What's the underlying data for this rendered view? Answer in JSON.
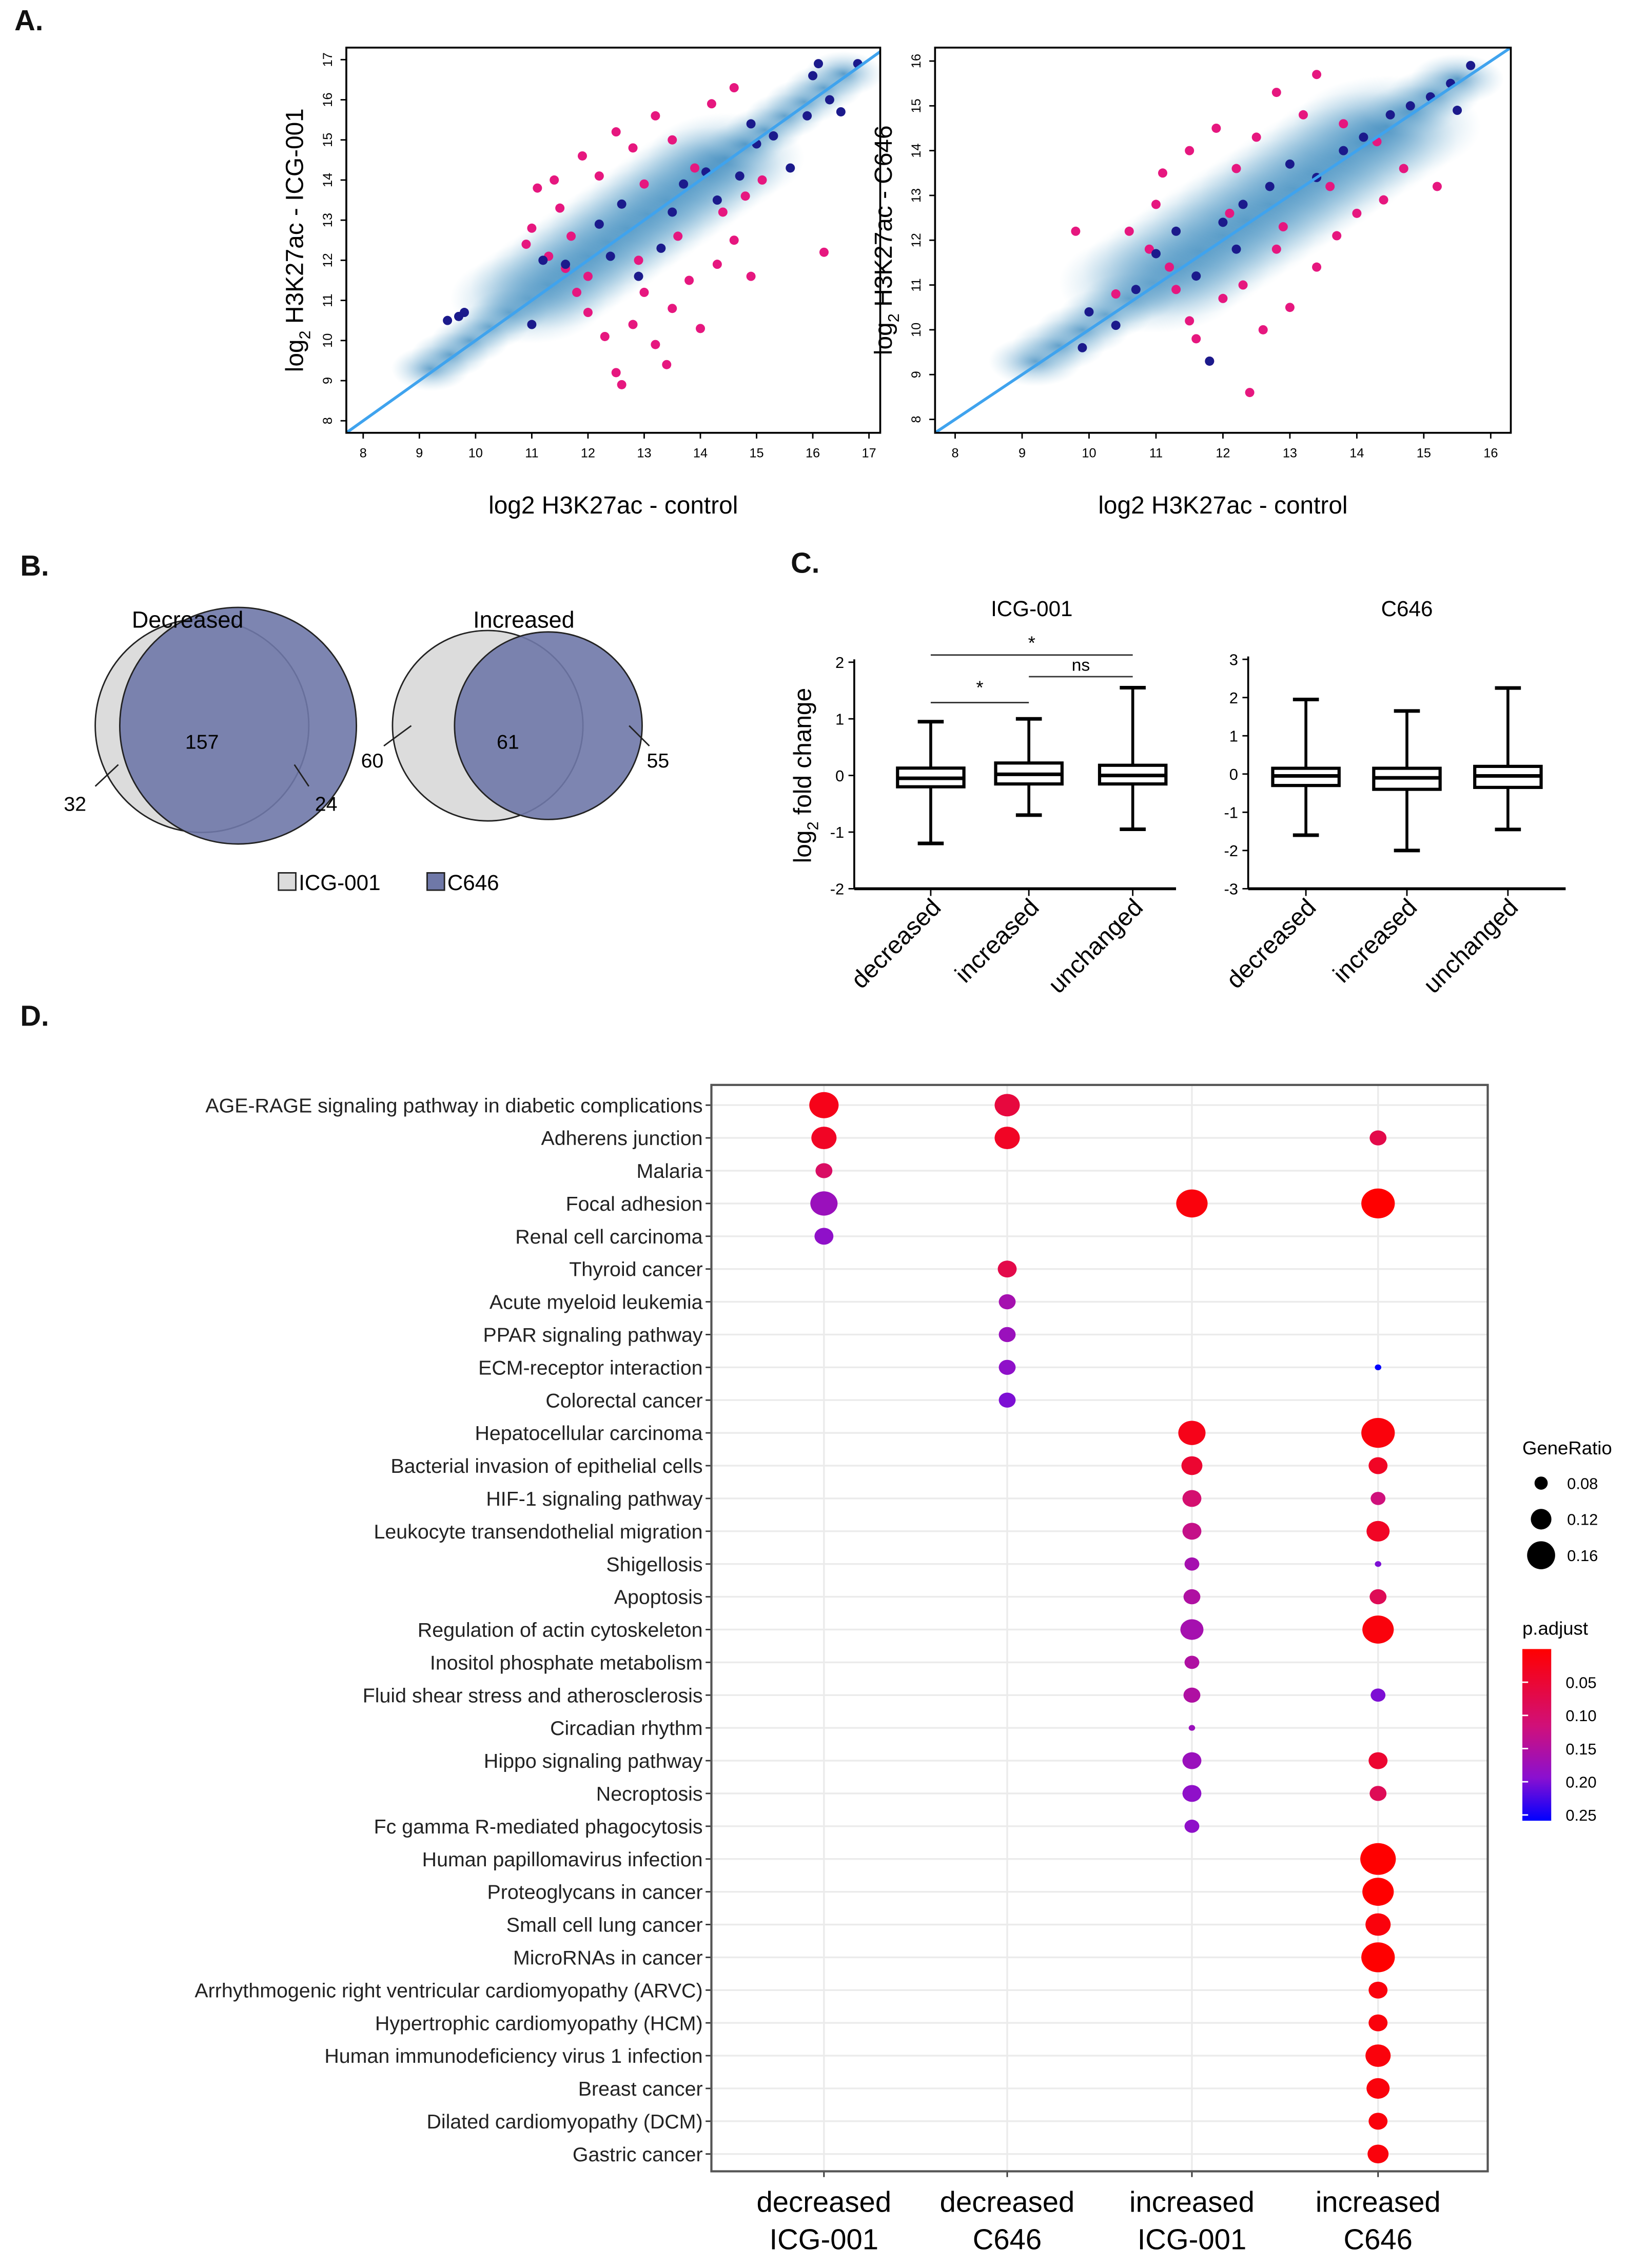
{
  "panel_labels": {
    "a": "A.",
    "b": "B.",
    "c": "C.",
    "d": "D."
  },
  "chart_data": [
    {
      "id": "A-left",
      "type": "scatter",
      "xlabel": "log2 H3K27ac - control",
      "ylabel_main": "log",
      "ylabel_sub": "2",
      "ylabel_rest": " H3K27ac - ICG-001",
      "xlim": [
        7.7,
        17.2
      ],
      "ylim": [
        7.7,
        17.3
      ],
      "xticks": [
        "8",
        "9",
        "10",
        "11",
        "12",
        "13",
        "14",
        "15",
        "16",
        "17"
      ],
      "yticks": [
        "8",
        "9",
        "10",
        "11",
        "12",
        "13",
        "14",
        "15",
        "16",
        "17"
      ],
      "diagonal": "y = x",
      "colors": {
        "changed": "#e6177f",
        "highlight": "#1b1a8c",
        "density": "#2c7fb8",
        "diagonal": "#3fa3ee"
      },
      "series": [
        {
          "role": "changed",
          "points": [
            [
              11,
              12.8
            ],
            [
              11.3,
              12.1
            ],
            [
              11.5,
              13.3
            ],
            [
              11.8,
              11.2
            ],
            [
              12,
              10.7
            ],
            [
              12.3,
              10.1
            ],
            [
              12.5,
              9.2
            ],
            [
              12.6,
              8.9
            ],
            [
              12.8,
              10.4
            ],
            [
              13,
              11.2
            ],
            [
              13.2,
              9.9
            ],
            [
              13.5,
              10.8
            ],
            [
              13.8,
              11.5
            ],
            [
              14,
              10.3
            ],
            [
              14.3,
              11.9
            ],
            [
              14.6,
              12.5
            ],
            [
              14.9,
              11.6
            ],
            [
              16.2,
              12.2
            ],
            [
              11.4,
              14.0
            ],
            [
              11.9,
              14.6
            ],
            [
              12.5,
              15.2
            ],
            [
              12.8,
              14.8
            ],
            [
              13.2,
              15.6
            ],
            [
              13.5,
              15.0
            ],
            [
              13.9,
              14.3
            ],
            [
              14.2,
              15.9
            ],
            [
              14.6,
              16.3
            ],
            [
              12.2,
              14.1
            ],
            [
              11.1,
              13.8
            ],
            [
              11.6,
              11.8
            ],
            [
              12.9,
              12.0
            ],
            [
              13.6,
              12.6
            ],
            [
              14.4,
              13.2
            ],
            [
              15.1,
              14.0
            ],
            [
              13.0,
              13.9
            ],
            [
              12.0,
              11.6
            ],
            [
              11.7,
              12.6
            ],
            [
              14.8,
              13.6
            ],
            [
              10.9,
              12.4
            ],
            [
              13.4,
              9.4
            ]
          ]
        },
        {
          "role": "highlight",
          "points": [
            [
              9.5,
              10.5
            ],
            [
              9.8,
              10.7
            ],
            [
              9.7,
              10.6
            ],
            [
              11,
              10.4
            ],
            [
              11.2,
              12.0
            ],
            [
              11.6,
              11.9
            ],
            [
              12.2,
              12.9
            ],
            [
              12.6,
              13.4
            ],
            [
              12.9,
              11.6
            ],
            [
              13.3,
              12.3
            ],
            [
              13.7,
              13.9
            ],
            [
              14.1,
              14.2
            ],
            [
              14.3,
              13.5
            ],
            [
              14.7,
              14.1
            ],
            [
              15.0,
              14.9
            ],
            [
              15.3,
              15.1
            ],
            [
              15.6,
              14.3
            ],
            [
              15.9,
              15.6
            ],
            [
              16.1,
              16.9
            ],
            [
              16.3,
              16.0
            ],
            [
              16.5,
              15.7
            ],
            [
              16.8,
              16.9
            ],
            [
              16.0,
              16.6
            ],
            [
              13.5,
              13.2
            ],
            [
              12.4,
              12.1
            ],
            [
              14.9,
              15.4
            ]
          ]
        }
      ]
    },
    {
      "id": "A-right",
      "type": "scatter",
      "xlabel": "log2 H3K27ac - control",
      "ylabel_main": "log",
      "ylabel_sub": "2",
      "ylabel_rest": " H3K27ac - C646",
      "xlim": [
        7.7,
        16.3
      ],
      "ylim": [
        7.7,
        16.3
      ],
      "xticks": [
        "8",
        "9",
        "10",
        "11",
        "12",
        "13",
        "14",
        "15",
        "16"
      ],
      "yticks": [
        "8",
        "9",
        "10",
        "11",
        "12",
        "13",
        "14",
        "15",
        "16"
      ],
      "diagonal": "y = x",
      "colors": {
        "changed": "#e6177f",
        "highlight": "#1b1a8c",
        "density": "#2c7fb8",
        "diagonal": "#3fa3ee"
      },
      "series": [
        {
          "role": "changed",
          "points": [
            [
              10.6,
              12.2
            ],
            [
              10.9,
              11.8
            ],
            [
              11.1,
              13.5
            ],
            [
              11.3,
              10.9
            ],
            [
              11.5,
              10.2
            ],
            [
              11.6,
              9.8
            ],
            [
              11.8,
              9.3
            ],
            [
              12.0,
              10.7
            ],
            [
              12.3,
              11.0
            ],
            [
              12.4,
              8.6
            ],
            [
              12.6,
              10.0
            ],
            [
              12.8,
              11.8
            ],
            [
              13.0,
              10.5
            ],
            [
              13.4,
              11.4
            ],
            [
              13.7,
              12.1
            ],
            [
              14.0,
              12.6
            ],
            [
              14.4,
              12.9
            ],
            [
              15.2,
              13.2
            ],
            [
              11.0,
              12.8
            ],
            [
              11.5,
              14.0
            ],
            [
              11.9,
              14.5
            ],
            [
              12.2,
              13.6
            ],
            [
              12.5,
              14.3
            ],
            [
              12.8,
              15.3
            ],
            [
              13.2,
              14.8
            ],
            [
              13.4,
              15.7
            ],
            [
              13.8,
              14.6
            ],
            [
              14.3,
              14.2
            ],
            [
              9.8,
              12.2
            ],
            [
              10.4,
              10.8
            ],
            [
              12.9,
              12.3
            ],
            [
              11.2,
              11.4
            ],
            [
              13.6,
              13.2
            ],
            [
              14.7,
              13.6
            ],
            [
              12.1,
              12.6
            ]
          ]
        },
        {
          "role": "highlight",
          "points": [
            [
              9.9,
              9.6
            ],
            [
              10.0,
              10.4
            ],
            [
              10.4,
              10.1
            ],
            [
              10.7,
              10.9
            ],
            [
              11.0,
              11.7
            ],
            [
              11.3,
              12.2
            ],
            [
              11.8,
              9.3
            ],
            [
              12.0,
              12.4
            ],
            [
              12.3,
              12.8
            ],
            [
              12.7,
              13.2
            ],
            [
              13.0,
              13.7
            ],
            [
              13.4,
              13.4
            ],
            [
              13.8,
              14.0
            ],
            [
              14.1,
              14.3
            ],
            [
              14.5,
              14.8
            ],
            [
              14.8,
              15.0
            ],
            [
              15.1,
              15.2
            ],
            [
              15.4,
              15.5
            ],
            [
              15.7,
              15.9
            ],
            [
              15.5,
              14.9
            ],
            [
              12.2,
              11.8
            ],
            [
              11.6,
              11.2
            ]
          ]
        }
      ]
    },
    {
      "id": "C-left",
      "type": "box",
      "title": "ICG-001",
      "ylabel_main": "log",
      "ylabel_sub": "2",
      "ylabel_rest": " fold change",
      "ylim": [
        -2,
        2
      ],
      "yticks": [
        "2",
        "1",
        "0",
        "-1",
        "-2"
      ],
      "categories": [
        "decreased",
        "increased",
        "unchanged"
      ],
      "boxes": [
        {
          "min": -1.2,
          "q1": -0.2,
          "median": -0.05,
          "q3": 0.13,
          "max": 0.95
        },
        {
          "min": -0.7,
          "q1": -0.15,
          "median": 0.02,
          "q3": 0.22,
          "max": 1.0
        },
        {
          "min": -0.95,
          "q1": -0.15,
          "median": 0.0,
          "q3": 0.18,
          "max": 1.55
        }
      ],
      "significance": [
        {
          "from": 0,
          "to": 2,
          "label": "*"
        },
        {
          "from": 0,
          "to": 1,
          "label": "*"
        },
        {
          "from": 1,
          "to": 2,
          "label": "ns"
        }
      ]
    },
    {
      "id": "C-right",
      "type": "box",
      "title": "C646",
      "ylim": [
        -3,
        3
      ],
      "yticks": [
        "3",
        "2",
        "1",
        "0",
        "-1",
        "-2",
        "-3"
      ],
      "categories": [
        "decreased",
        "increased",
        "unchanged"
      ],
      "boxes": [
        {
          "min": -1.6,
          "q1": -0.3,
          "median": -0.05,
          "q3": 0.15,
          "max": 1.95
        },
        {
          "min": -2.0,
          "q1": -0.4,
          "median": -0.1,
          "q3": 0.15,
          "max": 1.65
        },
        {
          "min": -1.45,
          "q1": -0.35,
          "median": -0.05,
          "q3": 0.2,
          "max": 2.25
        }
      ]
    },
    {
      "id": "D",
      "type": "dot",
      "columns": [
        [
          "decreased",
          "ICG-001"
        ],
        [
          "decreased",
          "C646"
        ],
        [
          "increased",
          "ICG-001"
        ],
        [
          "increased",
          "C646"
        ]
      ],
      "rows": [
        "AGE-RAGE signaling pathway in diabetic complications",
        "Adherens junction",
        "Malaria",
        "Focal adhesion",
        "Renal cell carcinoma",
        "Thyroid cancer",
        "Acute myeloid leukemia",
        "PPAR signaling pathway",
        "ECM-receptor interaction",
        "Colorectal cancer",
        "Hepatocellular carcinoma",
        "Bacterial invasion of epithelial cells",
        "HIF-1 signaling pathway",
        "Leukocyte transendothelial migration",
        "Shigellosis",
        "Apoptosis",
        "Regulation of actin cytoskeleton",
        "Inositol phosphate metabolism",
        "Fluid shear stress and atherosclerosis",
        "Circadian rhythm",
        "Hippo signaling pathway",
        "Necroptosis",
        "Fc gamma R-mediated phagocytosis",
        "Human papillomavirus infection",
        "Proteoglycans in cancer",
        "Small cell lung cancer",
        "MicroRNAs in cancer",
        "Arrhythmogenic right ventricular cardiomyopathy (ARVC)",
        "Hypertrophic cardiomyopathy (HCM)",
        "Human immunodeficiency virus 1 infection",
        "Breast cancer",
        "Dilated cardiomyopathy (DCM)",
        "Gastric cancer"
      ],
      "points_fields": [
        "row",
        "column",
        "GeneRatio",
        "p.adjust"
      ],
      "points": [
        [
          0,
          0,
          0.15,
          0.05
        ],
        [
          0,
          1,
          0.13,
          0.08
        ],
        [
          1,
          0,
          0.13,
          0.06
        ],
        [
          1,
          1,
          0.13,
          0.06
        ],
        [
          1,
          3,
          0.09,
          0.09
        ],
        [
          2,
          0,
          0.09,
          0.11
        ],
        [
          3,
          0,
          0.14,
          0.18
        ],
        [
          3,
          2,
          0.16,
          0.04
        ],
        [
          3,
          3,
          0.17,
          0.03
        ],
        [
          4,
          0,
          0.1,
          0.19
        ],
        [
          5,
          1,
          0.1,
          0.09
        ],
        [
          6,
          1,
          0.09,
          0.17
        ],
        [
          7,
          1,
          0.09,
          0.18
        ],
        [
          8,
          1,
          0.09,
          0.19
        ],
        [
          8,
          3,
          0.04,
          0.25
        ],
        [
          9,
          1,
          0.09,
          0.2
        ],
        [
          10,
          2,
          0.14,
          0.05
        ],
        [
          10,
          3,
          0.17,
          0.04
        ],
        [
          11,
          2,
          0.11,
          0.07
        ],
        [
          11,
          3,
          0.1,
          0.06
        ],
        [
          12,
          2,
          0.1,
          0.12
        ],
        [
          12,
          3,
          0.08,
          0.13
        ],
        [
          13,
          2,
          0.1,
          0.14
        ],
        [
          13,
          3,
          0.12,
          0.06
        ],
        [
          14,
          2,
          0.08,
          0.17
        ],
        [
          14,
          3,
          0.04,
          0.2
        ],
        [
          15,
          2,
          0.09,
          0.16
        ],
        [
          15,
          3,
          0.09,
          0.1
        ],
        [
          16,
          2,
          0.12,
          0.17
        ],
        [
          16,
          3,
          0.16,
          0.04
        ],
        [
          17,
          2,
          0.08,
          0.16
        ],
        [
          18,
          2,
          0.09,
          0.16
        ],
        [
          18,
          3,
          0.08,
          0.2
        ],
        [
          19,
          2,
          0.04,
          0.18
        ],
        [
          20,
          2,
          0.1,
          0.18
        ],
        [
          20,
          3,
          0.1,
          0.07
        ],
        [
          21,
          2,
          0.1,
          0.19
        ],
        [
          21,
          3,
          0.09,
          0.1
        ],
        [
          22,
          2,
          0.08,
          0.19
        ],
        [
          23,
          3,
          0.18,
          0.03
        ],
        [
          24,
          3,
          0.16,
          0.03
        ],
        [
          25,
          3,
          0.13,
          0.04
        ],
        [
          26,
          3,
          0.17,
          0.03
        ],
        [
          27,
          3,
          0.1,
          0.04
        ],
        [
          28,
          3,
          0.1,
          0.04
        ],
        [
          29,
          3,
          0.13,
          0.04
        ],
        [
          30,
          3,
          0.12,
          0.04
        ],
        [
          31,
          3,
          0.1,
          0.04
        ],
        [
          32,
          3,
          0.11,
          0.04
        ]
      ],
      "size_legend": {
        "title": "GeneRatio",
        "values": [
          "0.08",
          "0.12",
          "0.16"
        ]
      },
      "color_legend": {
        "title": "p.adjust",
        "ticks": [
          "0.05",
          "0.10",
          "0.15",
          "0.20",
          "0.25"
        ],
        "low_color": "#ff0000",
        "high_color": "#0000ff"
      }
    }
  ],
  "venn": {
    "decreased": {
      "title": "Decreased",
      "only_icg": "32",
      "both": "157",
      "only_c646": "24"
    },
    "increased": {
      "title": "Increased",
      "only_icg": "60",
      "both": "61",
      "only_c646": "55"
    },
    "legend": [
      {
        "label": "ICG-001",
        "color": "#dcdcdc"
      },
      {
        "label": "C646",
        "color": "#6f78a8"
      }
    ]
  }
}
